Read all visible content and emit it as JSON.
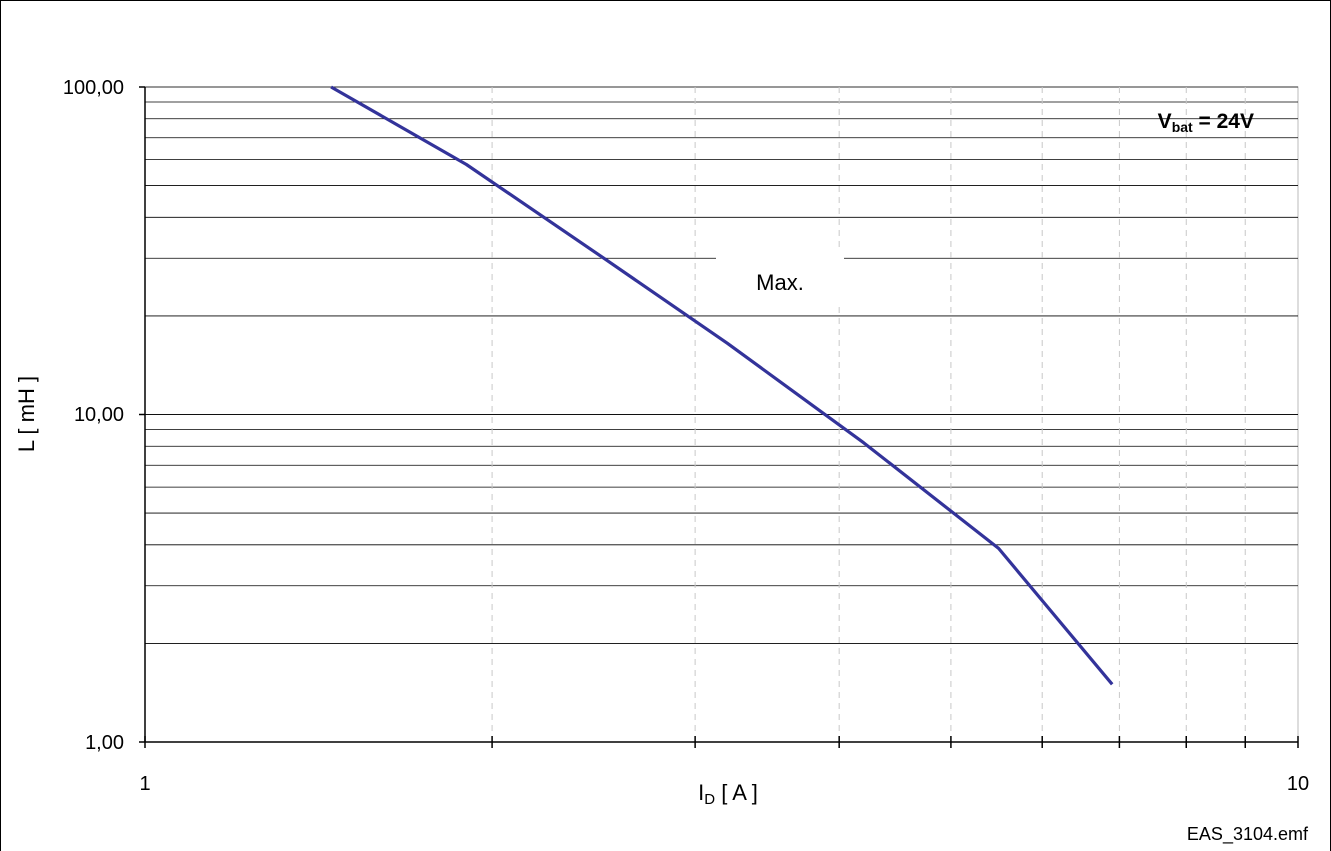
{
  "chart_data": {
    "type": "line",
    "xscale": "log",
    "yscale": "log",
    "xlim": [
      1,
      10
    ],
    "ylim": [
      1,
      100
    ],
    "xlabel": {
      "main": "I",
      "sub": "D",
      "rest": " [ A ]"
    },
    "ylabel": "L [ mH ]",
    "x_tick_labels": [
      {
        "value": 1,
        "label": "1"
      },
      {
        "value": 10,
        "label": "10"
      }
    ],
    "y_tick_labels": [
      {
        "value": 1,
        "label": "1,00"
      },
      {
        "value": 10,
        "label": "10,00"
      },
      {
        "value": 100,
        "label": "100,00"
      }
    ],
    "grid": true,
    "series": [
      {
        "name": "",
        "color": "#33339a",
        "x": [
          1.45,
          1.9,
          2.5,
          3.2,
          4.2,
          5.5,
          6.9
        ],
        "y": [
          100,
          58,
          30,
          16.5,
          8.2,
          3.9,
          1.5
        ]
      }
    ],
    "annotations": [
      {
        "id": "series_label",
        "text": "Max."
      },
      {
        "id": "condition",
        "main": "V",
        "sub": "bat",
        "rest": " = 24V"
      }
    ],
    "footer": "EAS_3104.emf"
  }
}
